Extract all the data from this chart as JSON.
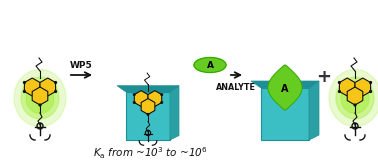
{
  "bg_color": "#ffffff",
  "teal_color": "#3bbfc4",
  "teal_dark": "#1e8f94",
  "teal_side": "#2aa0a5",
  "yellow_color": "#f5c518",
  "yellow_dark": "#c8a000",
  "green_glow": "#aaee44",
  "green_analyte": "#66cc22",
  "green_analyte_dark": "#33aa00",
  "black": "#111111",
  "arrow_color": "#111111",
  "plus_color": "#333333",
  "label_wp5": "WP5",
  "label_analyte": "ANALYTE",
  "label_a": "A",
  "figsize": [
    3.78,
    1.65
  ],
  "dpi": 100
}
